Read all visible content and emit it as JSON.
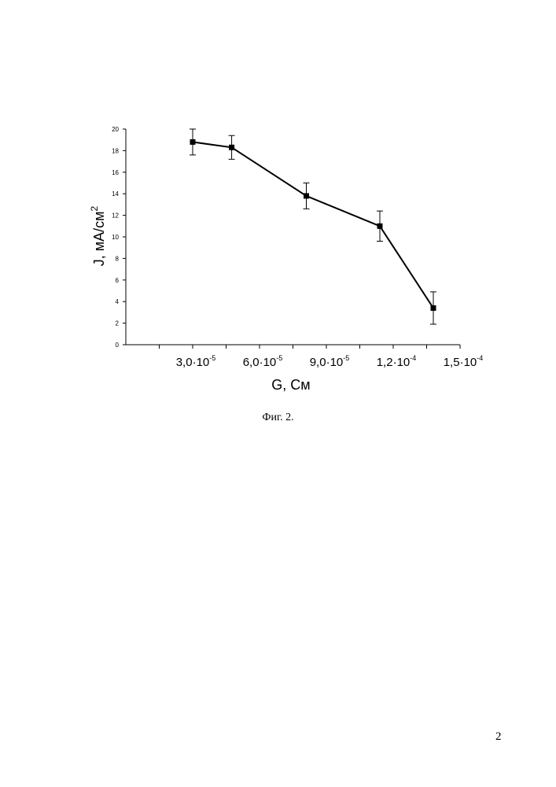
{
  "chart_data": {
    "type": "line",
    "title": "",
    "xlabel": "G, См",
    "ylabel": "J, мА/см",
    "ylabel_superscript": "2",
    "xlim": [
      0.0,
      0.00015
    ],
    "ylim": [
      0,
      20
    ],
    "yticks": [
      0,
      2,
      4,
      6,
      8,
      10,
      12,
      14,
      16,
      18,
      20
    ],
    "xticks": [
      {
        "value": 3e-05,
        "mantissa": "3,0",
        "exponent": "-5"
      },
      {
        "value": 6e-05,
        "mantissa": "6,0",
        "exponent": "-5"
      },
      {
        "value": 9e-05,
        "mantissa": "9,0",
        "exponent": "-5"
      },
      {
        "value": 0.00012,
        "mantissa": "1,2",
        "exponent": "-4"
      },
      {
        "value": 0.00015,
        "mantissa": "1,5",
        "exponent": "-4"
      }
    ],
    "grid": false,
    "marker": "square",
    "series": [
      {
        "x": [
          3e-05,
          4.75e-05,
          8.1e-05,
          0.000114,
          0.000138
        ],
        "y": [
          18.8,
          18.3,
          13.8,
          11.0,
          3.4
        ],
        "error": [
          1.2,
          1.1,
          1.2,
          1.4,
          1.5
        ]
      }
    ]
  },
  "caption": "Фиг. 2.",
  "page_number": "2"
}
